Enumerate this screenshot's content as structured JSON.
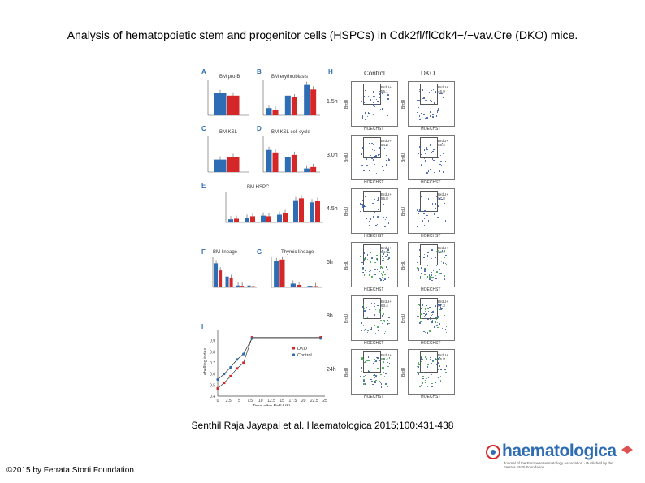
{
  "title": "Analysis of hematopoietic stem and progenitor cells (HSPCs) in Cdk2fl/flCdk4−/−vav.Cre (DKO) mice.",
  "citation": "Senthil Raja Jayapal et al. Haematologica 2015;100:431-438",
  "copyright": "©2015 by Ferrata Storti Foundation",
  "logo": {
    "text": "haematologica",
    "subtitle": "Journal of the European Hematology Association · Published by the Ferrata Storti Foundation"
  },
  "colors": {
    "dko": "#d62728",
    "control": "#2e6db3",
    "accent": "#2e6db3"
  },
  "figure": {
    "panels": {
      "A": {
        "letter": "A",
        "title": "BM pro-B",
        "ylabel": "% in total BM"
      },
      "B": {
        "letter": "B",
        "title": "BM erythroblasts",
        "ylabel": "% in total BM",
        "categories": [
          "Ery3",
          "EryP",
          "EryO"
        ]
      },
      "C": {
        "letter": "C",
        "title": "BM KSL",
        "ylabel": "% in total BM"
      },
      "D": {
        "letter": "D",
        "title": "BM KSL cell cycle",
        "ylabel": "% of KSL",
        "categories": [
          "G0",
          "G1",
          "S/G2/M"
        ]
      },
      "E": {
        "letter": "E",
        "title": "BM HSPC",
        "ylabel": "% in total BM",
        "categories": [
          "LT-HSC",
          "ST-HSC",
          "MPP",
          "CMP",
          "GMP",
          "MEP"
        ]
      },
      "F": {
        "letter": "F",
        "title": "BM lineage",
        "ylabel": "% in BM",
        "categories": [
          "Myeloid",
          "B-cells",
          "T/C",
          "MyeB"
        ]
      },
      "G": {
        "letter": "G",
        "title": "Thymic lineage",
        "ylabel": "% in thymus",
        "categories": [
          "CD4CD8 DP",
          "CD4 SP",
          "CD8 SP"
        ]
      },
      "H": {
        "letter": "H",
        "col_control": "Control",
        "col_dko": "DKO",
        "xaxis": "HOECHST",
        "yaxis": "BrdU",
        "gate_label": "BrdU+",
        "rows": [
          {
            "time": "1.5h",
            "control": "56.1",
            "dko": "46.9"
          },
          {
            "time": "3.0h",
            "control": "54.6",
            "dko": "58.4"
          },
          {
            "time": "4.5h",
            "control": "56.8",
            "dko": "57.8"
          },
          {
            "time": "6h",
            "control": "64.9",
            "dko": "69.1"
          },
          {
            "time": "8h",
            "control": "63.4",
            "dko": "67.3"
          },
          {
            "time": "24h",
            "control": "91.4",
            "dko": "85.5"
          }
        ]
      },
      "I": {
        "letter": "I",
        "xlabel": "Time after BrdU (h)",
        "ylabel": "Labelling index",
        "legend": [
          "DKO",
          "Control"
        ]
      }
    }
  },
  "chart_data": {
    "type": "line",
    "title": "",
    "xlabel": "Time after BrdU (h)",
    "ylabel": "Labelling index",
    "xlim": [
      0,
      25
    ],
    "ylim": [
      0.4,
      1.0
    ],
    "x_ticks": [
      0,
      2.5,
      5,
      7.5,
      10,
      12.5,
      15,
      17.5,
      20,
      22.5,
      25
    ],
    "y_ticks": [
      0.4,
      0.5,
      0.6,
      0.7,
      0.8,
      0.9
    ],
    "series": [
      {
        "name": "DKO",
        "x": [
          0,
          1.5,
          3,
          4.5,
          6,
          8,
          24
        ],
        "y": [
          0.47,
          0.52,
          0.58,
          0.65,
          0.7,
          0.93,
          0.93
        ]
      },
      {
        "name": "Control",
        "x": [
          0,
          1.5,
          3,
          4.5,
          6,
          8,
          24
        ],
        "y": [
          0.55,
          0.6,
          0.66,
          0.73,
          0.78,
          0.92,
          0.92
        ]
      }
    ]
  }
}
